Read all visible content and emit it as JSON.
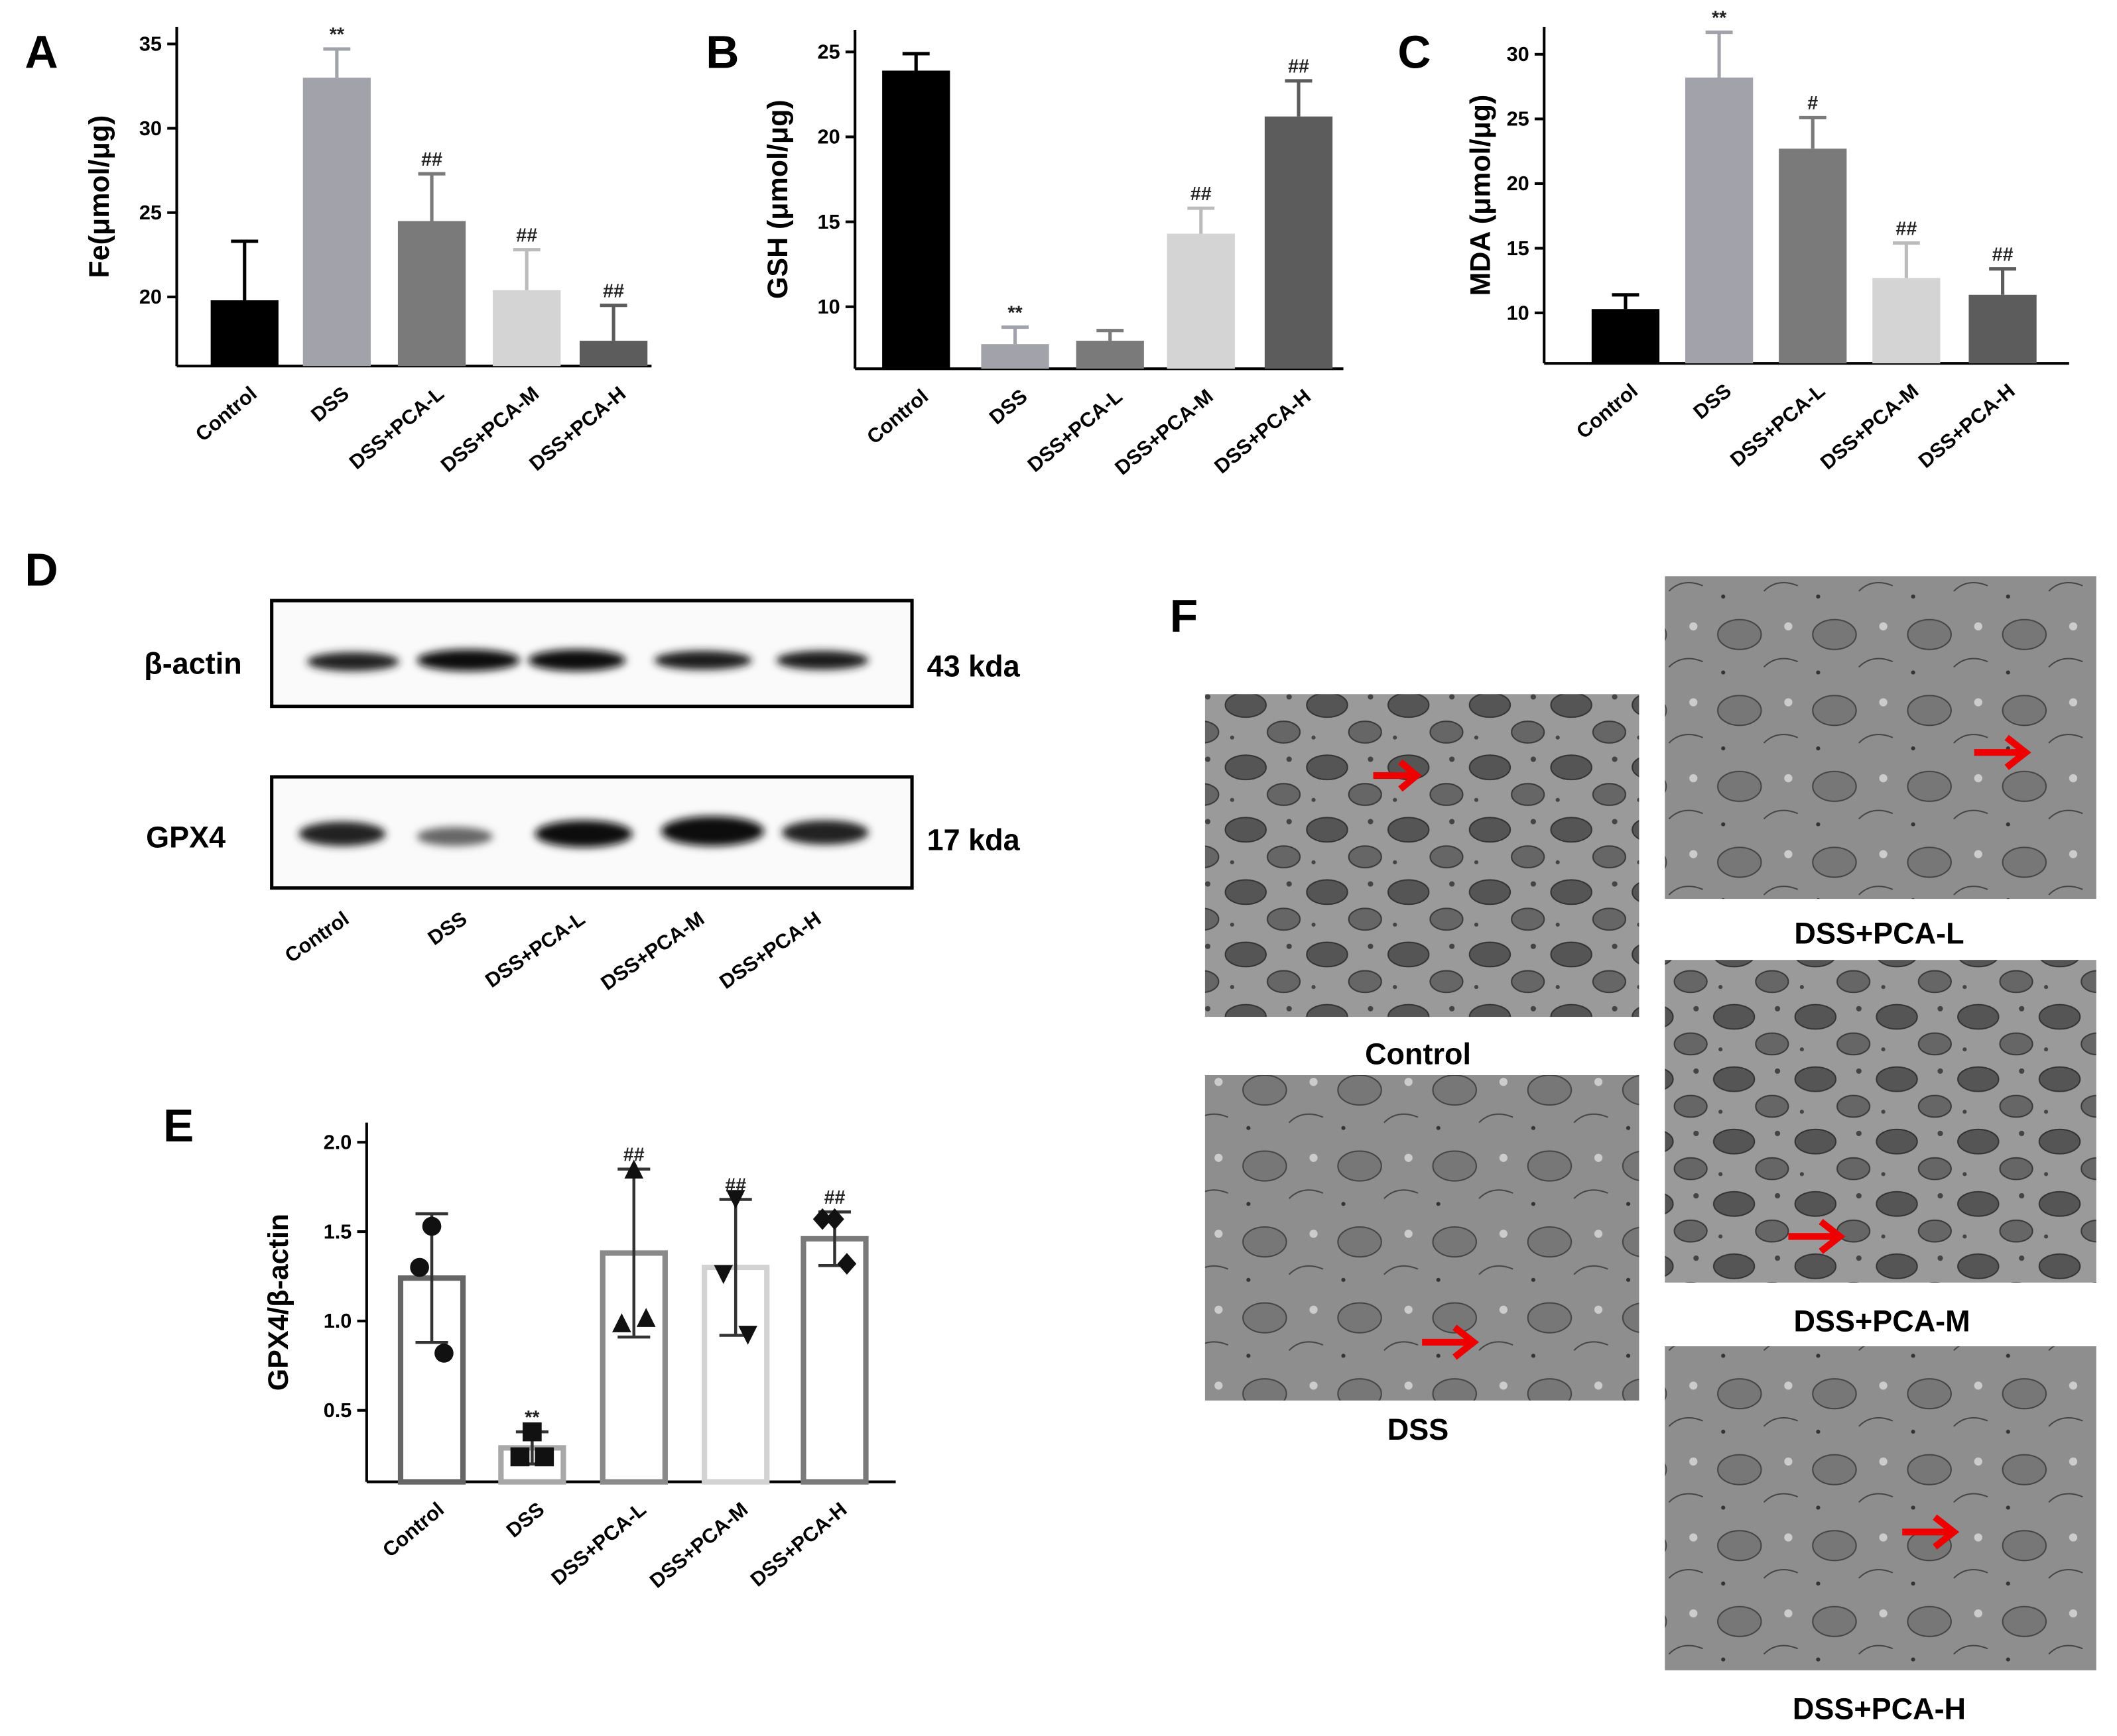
{
  "chart_data": [
    {
      "type": "bar",
      "panel": "A",
      "y_label": "Fe(μmol/μg)",
      "categories": [
        "Control",
        "DSS",
        "DSS+PCA-L",
        "DSS+PCA-M",
        "DSS+PCA-H"
      ],
      "values": [
        19.8,
        33.0,
        24.5,
        20.4,
        17.4
      ],
      "errors": [
        3.5,
        1.7,
        2.8,
        2.4,
        2.1
      ],
      "annotations": [
        null,
        "**",
        "##",
        "##",
        "##"
      ],
      "colors": [
        "#000000",
        "#a2a2aa",
        "#7a7a7a",
        "#d4d4d4",
        "#5c5c5c"
      ],
      "ylim": [
        15.9,
        36
      ],
      "yticks": [
        20,
        25,
        30,
        35
      ]
    },
    {
      "type": "bar",
      "panel": "B",
      "y_label": "GSH (μmol/μg)",
      "categories": [
        "Control",
        "DSS",
        "DSS+PCA-L",
        "DSS+PCA-M",
        "DSS+PCA-H"
      ],
      "values": [
        23.9,
        7.8,
        8.0,
        14.3,
        21.2
      ],
      "errors": [
        1.0,
        1.0,
        0.6,
        1.5,
        2.1
      ],
      "annotations": [
        null,
        "**",
        null,
        "##",
        "##"
      ],
      "colors": [
        "#000000",
        "#a2a2aa",
        "#7a7a7a",
        "#d4d4d4",
        "#5c5c5c"
      ],
      "ylim": [
        6.35,
        26.3
      ],
      "yticks": [
        10,
        15,
        20,
        25
      ]
    },
    {
      "type": "bar",
      "panel": "C",
      "y_label": "MDA (μmol/μg)",
      "categories": [
        "Control",
        "DSS",
        "DSS+PCA-L",
        "DSS+PCA-M",
        "DSS+PCA-H"
      ],
      "values": [
        10.3,
        28.2,
        22.7,
        12.7,
        11.4
      ],
      "errors": [
        1.1,
        3.5,
        2.4,
        2.7,
        2.0
      ],
      "annotations": [
        null,
        "**",
        "#",
        "##",
        "##"
      ],
      "colors": [
        "#000000",
        "#a2a2aa",
        "#7a7a7a",
        "#d4d4d4",
        "#5c5c5c"
      ],
      "ylim": [
        6.1,
        32.1
      ],
      "yticks": [
        10,
        15,
        20,
        25,
        30
      ]
    },
    {
      "type": "dotbar",
      "panel": "E",
      "y_label": "GPX4/β-actin",
      "categories": [
        "Control",
        "DSS",
        "DSS+PCA-L",
        "DSS+PCA-M",
        "DSS+PCA-H"
      ],
      "values": [
        1.24,
        0.29,
        1.38,
        1.3,
        1.46
      ],
      "errors": [
        0.36,
        0.09,
        0.47,
        0.38,
        0.15
      ],
      "points": [
        [
          1.53,
          1.3,
          0.82
        ],
        [
          0.38,
          0.24,
          0.24
        ],
        [
          1.85,
          0.99,
          1.02
        ],
        [
          1.68,
          1.26,
          0.92
        ],
        [
          1.57,
          1.57,
          1.32
        ]
      ],
      "annotations": [
        null,
        "**",
        "##",
        "##",
        "##"
      ],
      "colors": [
        "#666666",
        "#a8a8a8",
        "#8a8a8a",
        "#d2d2d2",
        "#7a7a7a"
      ],
      "ylim": [
        0.1,
        2.11
      ],
      "yticks": [
        0.5,
        {
          "value": 1.0,
          "label": "1.0"
        },
        1.5,
        {
          "value": 2.0,
          "label": "2.0"
        }
      ]
    }
  ],
  "western_blot": {
    "panel": "D",
    "bands": [
      {
        "name": "β-actin",
        "size": "43 kda"
      },
      {
        "name": "GPX4",
        "size": "17 kda"
      }
    ],
    "lanes": [
      "Control",
      "DSS",
      "DSS+PCA-L",
      "DSS+PCA-M",
      "DSS+PCA-H"
    ]
  },
  "tem_images": {
    "panel": "F",
    "captions": [
      "Control",
      "DSS",
      "DSS+PCA-L",
      "DSS+PCA-M",
      "DSS+PCA-H"
    ]
  }
}
